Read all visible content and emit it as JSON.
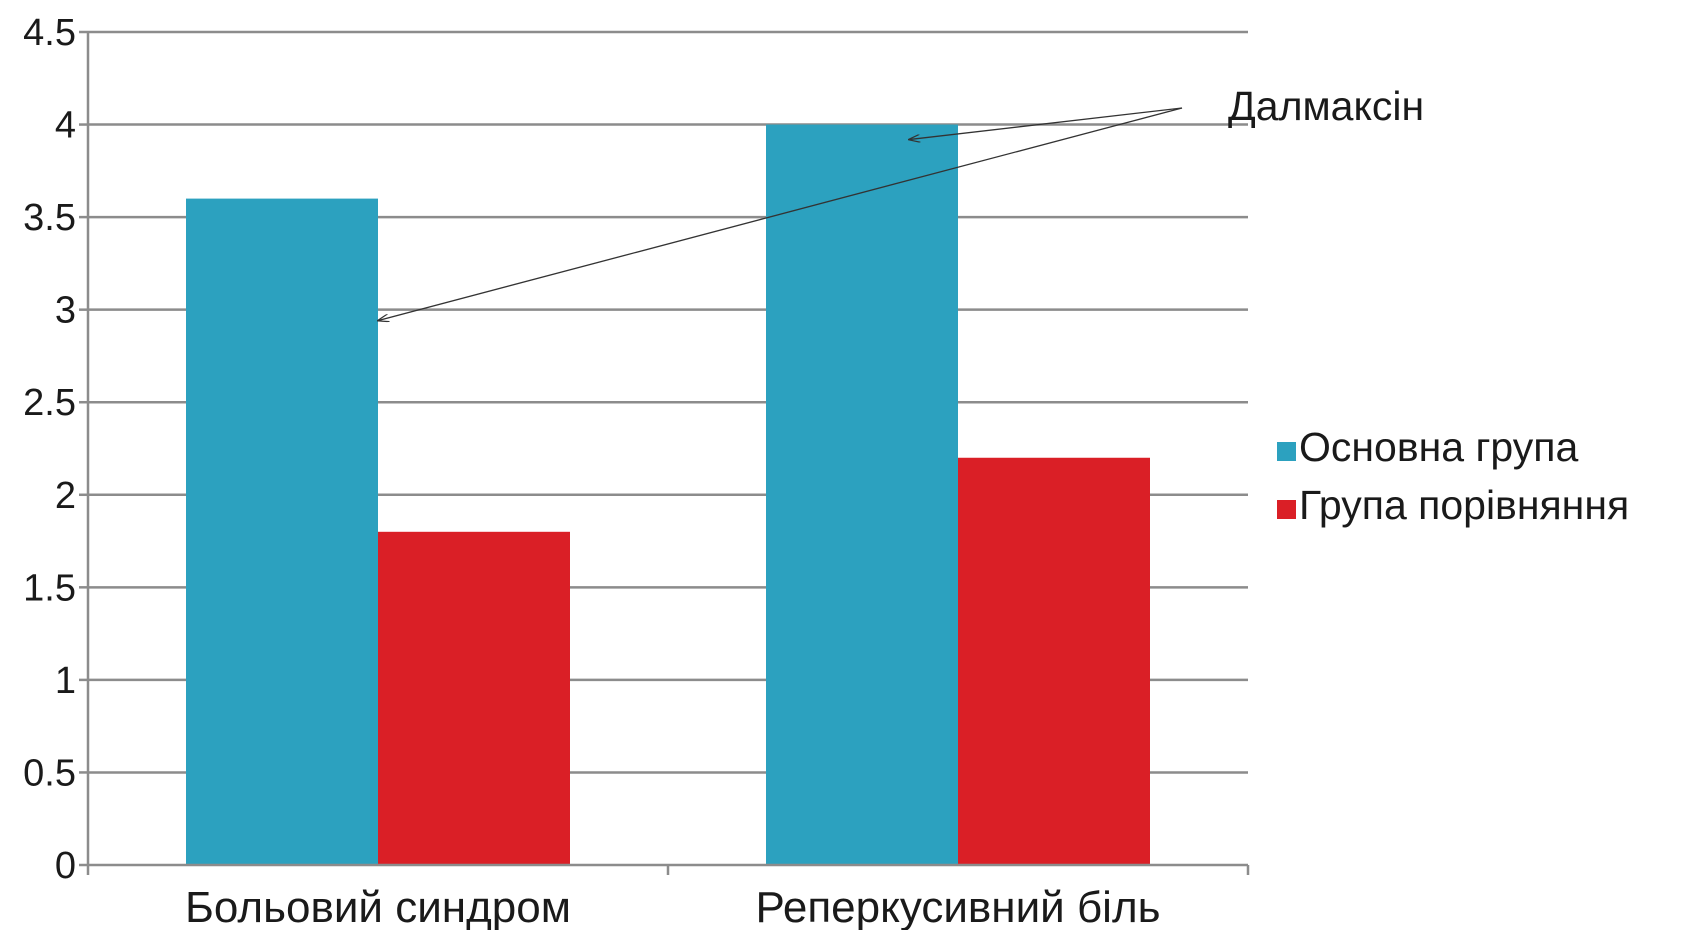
{
  "chart_data": {
    "type": "bar",
    "categories": [
      "Больовий синдром",
      "Реперкусивний біль"
    ],
    "series": [
      {
        "name": "Основна група",
        "values": [
          3.6,
          4.0
        ],
        "color": "#2ca1bf"
      },
      {
        "name": "Група порівняння",
        "values": [
          1.8,
          2.2
        ],
        "color": "#da1f26"
      }
    ],
    "ylim": [
      0,
      4.5
    ],
    "yticks": [
      "0",
      "0.5",
      "1",
      "1.5",
      "2",
      "2.5",
      "3",
      "3.5",
      "4",
      "4.5"
    ],
    "grid": true,
    "legend": "right",
    "annotation": {
      "text": "Далмаксін",
      "targets": [
        {
          "category": 0,
          "series": 0
        },
        {
          "category": 1,
          "series": 0
        }
      ]
    }
  }
}
